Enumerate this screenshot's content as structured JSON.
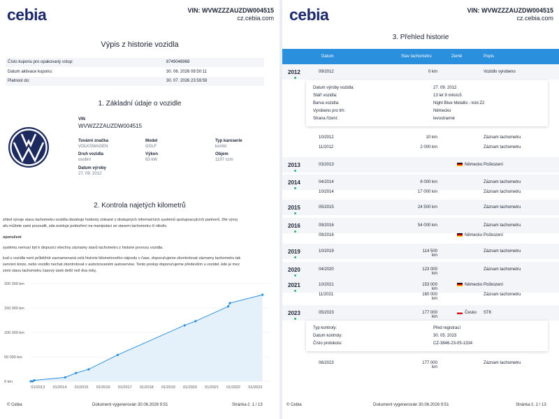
{
  "header": {
    "logo": "cebia",
    "vin_line": "VIN: WVWZZZAUZDW004515",
    "site": "cz.cebia.com"
  },
  "left": {
    "title": "Výpis z historie vozidla",
    "coupon": [
      {
        "label": "Číslo kuponu pro opakovaný vstup:",
        "value": "8749048968"
      },
      {
        "label": "Datum aktivace kuponu:",
        "value": "30. 06. 2026 09:50:11"
      },
      {
        "label": "Platnost do:",
        "value": "30. 07. 2026 23:59:59"
      }
    ],
    "section1_title": "1. Základní údaje o vozidle",
    "vin_label": "VIN",
    "vin_value": "WVWZZZAUZDW004515",
    "fields": {
      "make_label": "Tovární značka",
      "make_value": "VOLKSWAGEN",
      "model_label": "Model",
      "model_value": "GOLF",
      "body_label": "Typ karoserie",
      "body_value": "kombi",
      "type_label": "Druh vozidla",
      "type_value": "osobní",
      "power_label": "Výkon",
      "power_value": "63 kW",
      "vol_label": "Objem",
      "vol_value": "1197 ccm",
      "made_label": "Datum výroby",
      "made_value": "27. 09. 2012"
    },
    "section2_title": "2. Kontrola najetých kilometrů",
    "para1a": "zhled vývoje stavu tachometru vozidla obsahuje hodnoty získané z dostupných informačních systémů spolupracujících partnerů. Dle vývoj",
    "para1b": "afu můžete sami posoudit, zda existuje podezření na manipulaci se stavem tachometru či nikoliv.",
    "para2": "oporučení",
    "para3": "systému nemusí být k dispozici všechny záznamy stavů tachometru z historie provozu vozidla.",
    "para4a": "kud u vozidla není průběžně zaznamenaná celá historie kilometrového nájezdu v čase, doporučujeme zkontrolovat záznamy tachometru tak",
    "para4b": "servisní knize, nebo vozidlo nechat zkontrolovat v autorizovaném autoservise. Tento postup doporučujeme především u vozidel, kde je mez",
    "para4c": "zemi stavu tachometru časový úsek delší než dva roky.",
    "footer_left": "© Cebia",
    "footer_mid": "Dokument vygenerován 30.06.2026 9:51",
    "footer_right": "Stránka č. 1 / 13"
  },
  "chart_data": {
    "type": "area",
    "title": "",
    "xlabel": "",
    "ylabel": "",
    "y_ticks": [
      "0 km",
      "50 000 km",
      "100 000 km",
      "150 000 km",
      "200 000 km"
    ],
    "x_ticks": [
      "01/2013",
      "01/2014",
      "01/2015",
      "01/2016",
      "01/2017",
      "01/2018",
      "01/2019",
      "01/2020",
      "01/2021",
      "01/2022",
      "01/2023"
    ],
    "ylim": [
      0,
      200000
    ],
    "xlim": [
      "2012-09",
      "2023-09"
    ],
    "color": "#2a8fdc",
    "x": [
      "2012-09",
      "2012-10",
      "2012-11",
      "2014-04",
      "2014-10",
      "2015-05",
      "2016-09",
      "2019-10",
      "2020-04",
      "2021-10",
      "2021-11",
      "2023-05"
    ],
    "values": [
      0,
      10,
      2000,
      8000,
      17000,
      24500,
      54000,
      114500,
      123000,
      153000,
      160000,
      177000
    ]
  },
  "right": {
    "title": "3. Přehled historie",
    "columns": [
      "Datum",
      "Stav tachometru",
      "Země",
      "Popis"
    ],
    "rows": [
      {
        "year": "2012",
        "date": "09/2012",
        "km": "0 km",
        "country": "",
        "flag": "",
        "desc": "Vozidlo vyrobeno"
      },
      {
        "year": "",
        "date": "10/2012",
        "km": "10 km",
        "country": "",
        "flag": "",
        "desc": "Záznam tachometru"
      },
      {
        "year": "",
        "date": "11/2012",
        "km": "2 000 km",
        "country": "",
        "flag": "",
        "desc": "Záznam tachometru"
      },
      {
        "year": "2013",
        "date": "03/2013",
        "km": "",
        "country": "Německo",
        "flag": "de",
        "desc": "Poškození"
      },
      {
        "year": "2014",
        "date": "04/2014",
        "km": "8 000 km",
        "country": "",
        "flag": "",
        "desc": "Záznam tachometru"
      },
      {
        "year": "",
        "date": "10/2014",
        "km": "17 000 km",
        "country": "",
        "flag": "",
        "desc": "Záznam tachometru"
      },
      {
        "year": "2015",
        "date": "05/2015",
        "km": "24 500 km",
        "country": "",
        "flag": "",
        "desc": "Záznam tachometru"
      },
      {
        "year": "2016",
        "date": "09/2016",
        "km": "54 000 km",
        "country": "",
        "flag": "",
        "desc": "Záznam tachometru"
      },
      {
        "year": "",
        "date": "09/2016",
        "km": "",
        "country": "Německo",
        "flag": "de",
        "desc": "Poškození"
      },
      {
        "year": "2019",
        "date": "10/2019",
        "km": "114 500 km",
        "country": "",
        "flag": "",
        "desc": "Záznam tachometru"
      },
      {
        "year": "2020",
        "date": "04/2020",
        "km": "123 000 km",
        "country": "",
        "flag": "",
        "desc": "Záznam tachometru"
      },
      {
        "year": "2021",
        "date": "10/2021",
        "km": "153 000 km",
        "country": "Německo",
        "flag": "de",
        "desc": "Poškození"
      },
      {
        "year": "",
        "date": "11/2021",
        "km": "160 000 km",
        "country": "",
        "flag": "",
        "desc": "Záznam tachometru"
      },
      {
        "year": "2023",
        "date": "05/2023",
        "km": "177 000 km",
        "country": "Česko",
        "flag": "cz",
        "desc": "STK"
      },
      {
        "year": "",
        "date": "06/2023",
        "km": "177 000 km",
        "country": "",
        "flag": "",
        "desc": "Záznam tachometru"
      }
    ],
    "card1": [
      {
        "label": "Datum výroby vozidla:",
        "value": "27. 09. 2012"
      },
      {
        "label": "Stáří vozidla:",
        "value": "13 let 9 měsíců"
      },
      {
        "label": "Barva vozidla:",
        "value": "Night Blue Metallic - kód Z2"
      },
      {
        "label": "Vyrobeno pro trh:",
        "value": "Německo"
      },
      {
        "label": "Strana řízení:",
        "value": "levostranné"
      }
    ],
    "card2": [
      {
        "label": "Typ kontroly:",
        "value": "Před registrací"
      },
      {
        "label": "Datum kontroly:",
        "value": "30. 05. 2023"
      },
      {
        "label": "Číslo protokolu:",
        "value": "CZ-3846-23-05-1334"
      }
    ],
    "footer_left": "© Cebia",
    "footer_mid": "Dokument vygenerován 30.06.2026 9:51",
    "footer_right": "Stránka č. 2 / 13"
  }
}
